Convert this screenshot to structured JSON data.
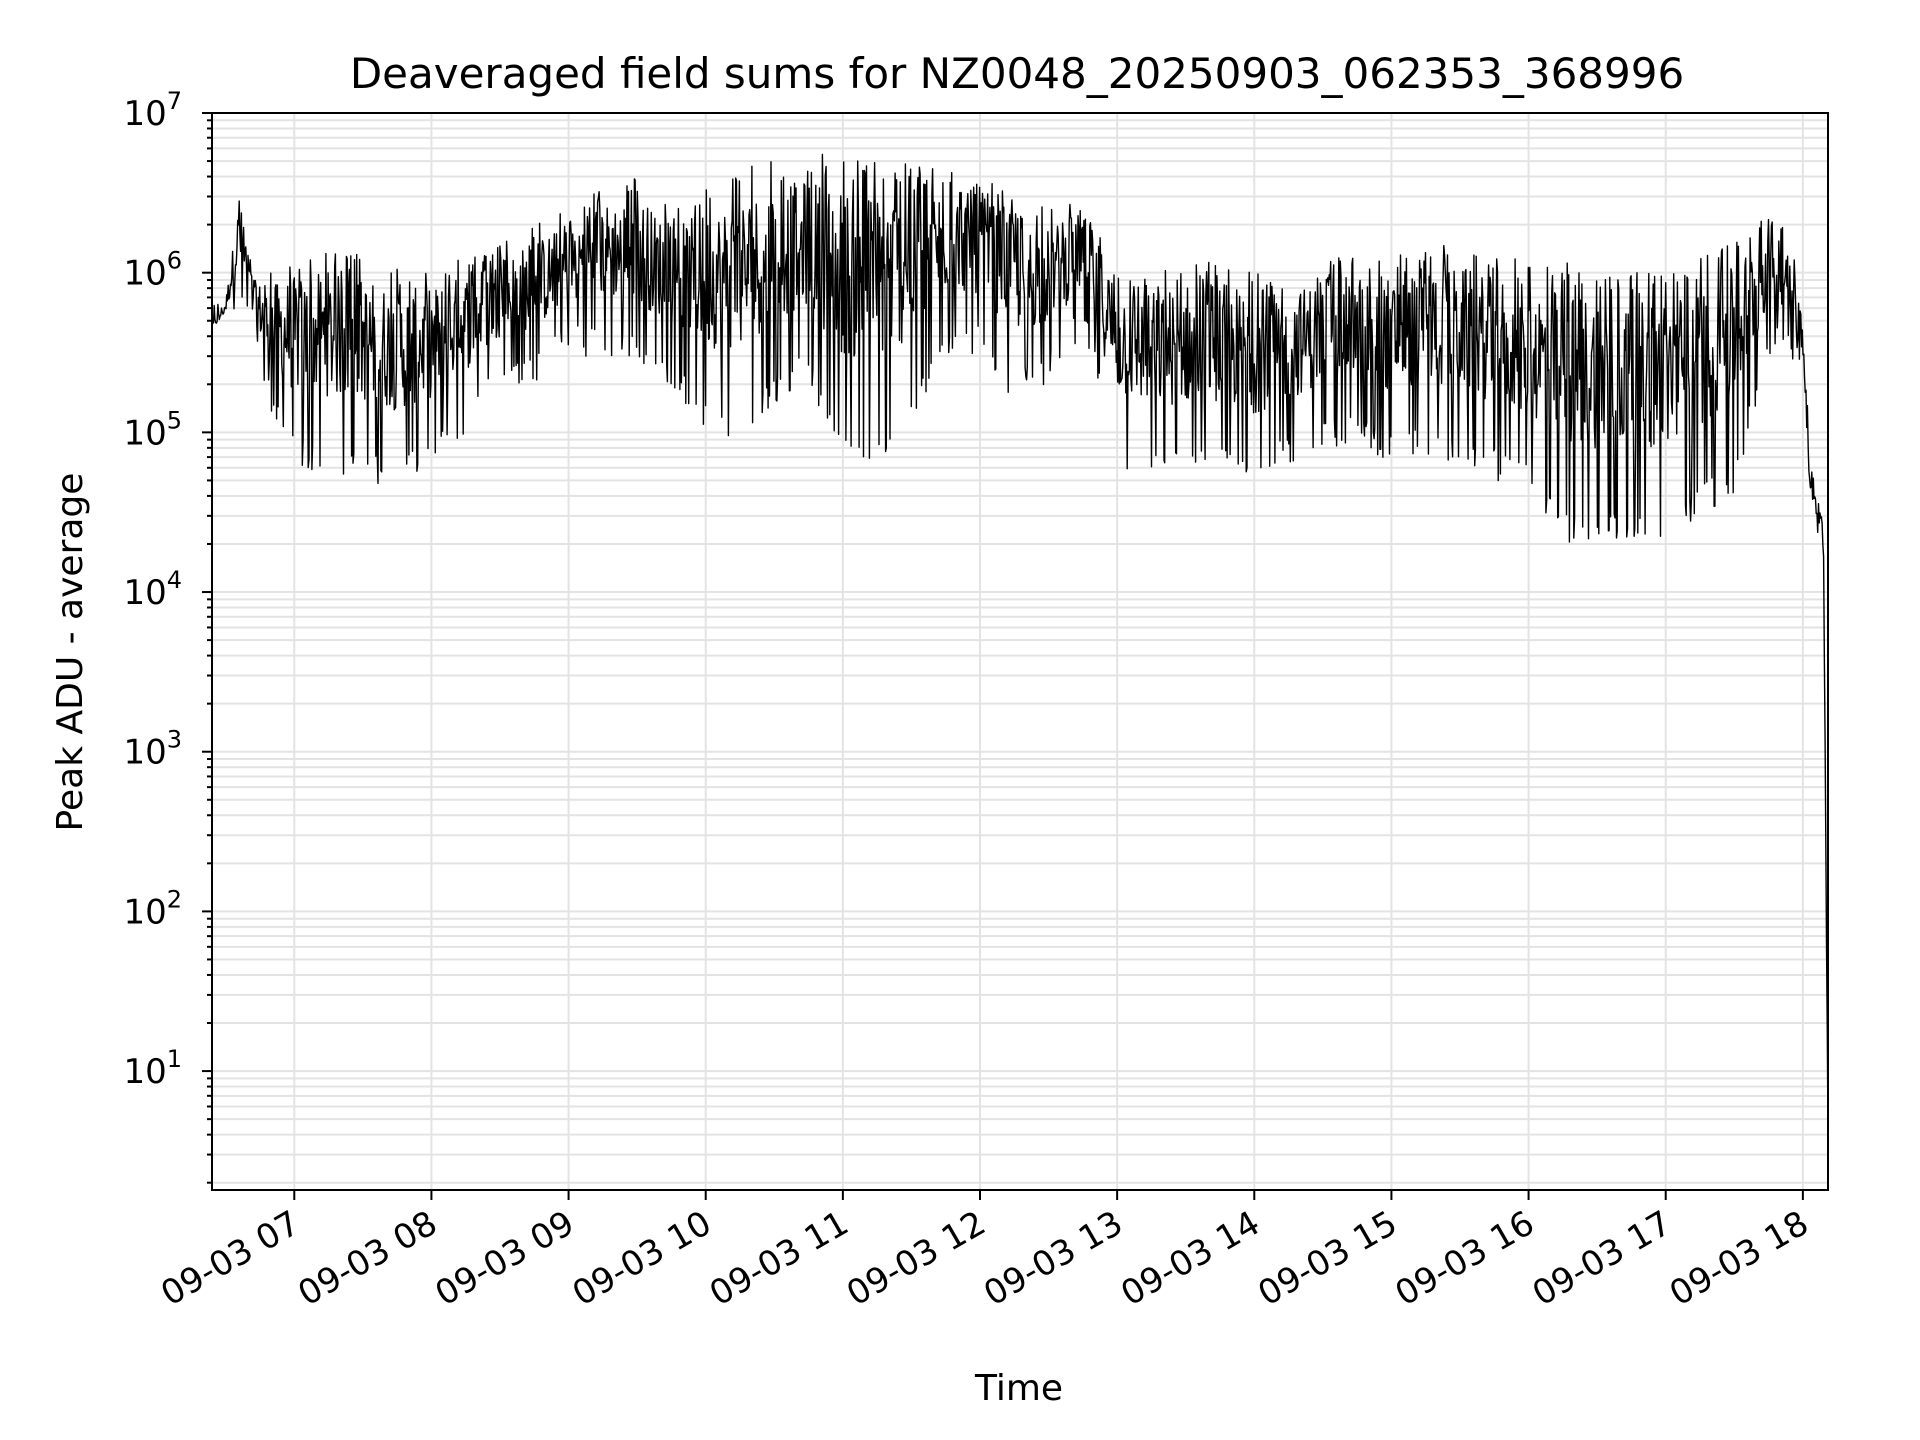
{
  "chart_data": {
    "type": "line",
    "title": "Deaveraged field sums for NZ0048_20250903_062353_368996",
    "xlabel": "Time",
    "ylabel": "Peak ADU - average",
    "yscale": "log",
    "ylim": [
      1.8,
      10000000
    ],
    "xlim": [
      "2025-09-03 06:24",
      "2025-09-03 18:11"
    ],
    "grid": true,
    "line_color": "#000000",
    "x_ticks": [
      "09-03 07",
      "09-03 08",
      "09-03 09",
      "09-03 10",
      "09-03 11",
      "09-03 12",
      "09-03 13",
      "09-03 14",
      "09-03 15",
      "09-03 16",
      "09-03 17",
      "09-03 18"
    ],
    "y_ticks": [
      {
        "base": "10",
        "exp": "1",
        "value": 10
      },
      {
        "base": "10",
        "exp": "2",
        "value": 100
      },
      {
        "base": "10",
        "exp": "3",
        "value": 1000
      },
      {
        "base": "10",
        "exp": "4",
        "value": 10000
      },
      {
        "base": "10",
        "exp": "5",
        "value": 100000
      },
      {
        "base": "10",
        "exp": "6",
        "value": 1000000
      },
      {
        "base": "10",
        "exp": "7",
        "value": 10000000
      }
    ],
    "envelope": {
      "x": [
        "2025-09-03 06:24",
        "2025-09-03 06:30",
        "2025-09-03 06:36",
        "2025-09-03 06:42",
        "2025-09-03 06:48",
        "2025-09-03 07:00",
        "2025-09-03 07:15",
        "2025-09-03 07:30",
        "2025-09-03 07:45",
        "2025-09-03 08:00",
        "2025-09-03 08:15",
        "2025-09-03 08:30",
        "2025-09-03 08:45",
        "2025-09-03 09:00",
        "2025-09-03 09:15",
        "2025-09-03 09:30",
        "2025-09-03 09:45",
        "2025-09-03 10:00",
        "2025-09-03 10:15",
        "2025-09-03 10:30",
        "2025-09-03 10:45",
        "2025-09-03 11:00",
        "2025-09-03 11:15",
        "2025-09-03 11:30",
        "2025-09-03 11:45",
        "2025-09-03 12:00",
        "2025-09-03 12:15",
        "2025-09-03 12:30",
        "2025-09-03 12:45",
        "2025-09-03 13:00",
        "2025-09-03 13:15",
        "2025-09-03 13:30",
        "2025-09-03 13:45",
        "2025-09-03 14:00",
        "2025-09-03 14:15",
        "2025-09-03 14:30",
        "2025-09-03 14:45",
        "2025-09-03 15:00",
        "2025-09-03 15:15",
        "2025-09-03 15:30",
        "2025-09-03 15:45",
        "2025-09-03 16:00",
        "2025-09-03 16:15",
        "2025-09-03 16:30",
        "2025-09-03 16:45",
        "2025-09-03 17:00",
        "2025-09-03 17:15",
        "2025-09-03 17:30",
        "2025-09-03 17:45",
        "2025-09-03 17:55",
        "2025-09-03 18:00",
        "2025-09-03 18:03",
        "2025-09-03 18:06",
        "2025-09-03 18:09",
        "2025-09-03 18:11"
      ],
      "upper": [
        500000,
        700000,
        3500000,
        1000000,
        1000000,
        1300000,
        1400000,
        1300000,
        1100000,
        1100000,
        1300000,
        1500000,
        2000000,
        2500000,
        3500000,
        4000000,
        2500000,
        3500000,
        4500000,
        5000000,
        5500000,
        5500000,
        5000000,
        5000000,
        4500000,
        4000000,
        3000000,
        2500000,
        3000000,
        1200000,
        1000000,
        1200000,
        1300000,
        1000000,
        1000000,
        1200000,
        1300000,
        1300000,
        1500000,
        1500000,
        1300000,
        1200000,
        1200000,
        1100000,
        1000000,
        1000000,
        1300000,
        1600000,
        2800000,
        2000000,
        500000,
        80000,
        50000,
        30000,
        4
      ],
      "lower": [
        400000,
        500000,
        600000,
        400000,
        150000,
        60000,
        55000,
        50000,
        45000,
        60000,
        100000,
        200000,
        200000,
        300000,
        300000,
        250000,
        200000,
        100000,
        80000,
        150000,
        200000,
        60000,
        60000,
        100000,
        300000,
        300000,
        150000,
        200000,
        400000,
        60000,
        50000,
        50000,
        50000,
        45000,
        60000,
        80000,
        80000,
        60000,
        70000,
        60000,
        50000,
        40000,
        20000,
        20000,
        20000,
        20000,
        30000,
        40000,
        300000,
        300000,
        200000,
        30000,
        25000,
        15000,
        4
      ]
    }
  }
}
